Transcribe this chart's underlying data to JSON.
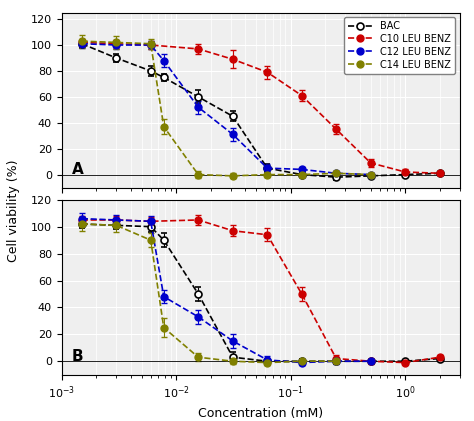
{
  "panel_A": {
    "BAC": {
      "x": [
        0.0015,
        0.003,
        0.006,
        0.0078,
        0.0156,
        0.03125,
        0.0625,
        0.125,
        0.25,
        0.5,
        1.0,
        2.0
      ],
      "y": [
        101,
        90,
        80,
        75,
        60,
        45,
        5,
        0,
        -2,
        -1,
        0,
        1
      ],
      "yerr": [
        3,
        3,
        4,
        3,
        5,
        4,
        3,
        2,
        2,
        1,
        1,
        1
      ]
    },
    "C10": {
      "x": [
        0.0015,
        0.003,
        0.006,
        0.0156,
        0.03125,
        0.0625,
        0.125,
        0.25,
        0.5,
        1.0,
        2.0
      ],
      "y": [
        102,
        101,
        100,
        97,
        89,
        79,
        61,
        35,
        9,
        2,
        1
      ],
      "yerr": [
        3,
        3,
        3,
        4,
        7,
        5,
        4,
        4,
        3,
        2,
        1
      ]
    },
    "C12": {
      "x": [
        0.0015,
        0.003,
        0.006,
        0.0078,
        0.0156,
        0.03125,
        0.0625,
        0.125,
        0.25,
        0.5
      ],
      "y": [
        101,
        100,
        100,
        88,
        52,
        31,
        5,
        4,
        1,
        0
      ],
      "yerr": [
        3,
        3,
        3,
        5,
        5,
        5,
        3,
        2,
        2,
        1
      ]
    },
    "C14": {
      "x": [
        0.0015,
        0.003,
        0.006,
        0.0078,
        0.0156,
        0.03125,
        0.0625,
        0.125,
        0.25,
        0.5
      ],
      "y": [
        103,
        102,
        101,
        37,
        0,
        -1,
        0,
        0,
        1,
        0
      ],
      "yerr": [
        5,
        5,
        4,
        6,
        3,
        2,
        2,
        1,
        1,
        1
      ]
    }
  },
  "panel_B": {
    "BAC": {
      "x": [
        0.0015,
        0.003,
        0.006,
        0.0078,
        0.0156,
        0.03125,
        0.0625,
        0.125,
        0.25,
        0.5,
        1.0,
        2.0
      ],
      "y": [
        102,
        101,
        100,
        90,
        50,
        3,
        0,
        0,
        0,
        0,
        0,
        2
      ],
      "yerr": [
        3,
        3,
        4,
        5,
        5,
        4,
        2,
        2,
        2,
        1,
        1,
        1
      ]
    },
    "C10": {
      "x": [
        0.0015,
        0.003,
        0.006,
        0.0156,
        0.03125,
        0.0625,
        0.125,
        0.25,
        0.5,
        1.0,
        2.0
      ],
      "y": [
        105,
        105,
        104,
        105,
        97,
        94,
        50,
        2,
        0,
        -1,
        3
      ],
      "yerr": [
        3,
        3,
        3,
        4,
        4,
        5,
        5,
        3,
        2,
        1,
        2
      ]
    },
    "C12": {
      "x": [
        0.0015,
        0.003,
        0.006,
        0.0078,
        0.0156,
        0.03125,
        0.0625,
        0.125,
        0.25,
        0.5
      ],
      "y": [
        106,
        105,
        104,
        48,
        33,
        15,
        1,
        -1,
        0,
        0
      ],
      "yerr": [
        4,
        4,
        4,
        5,
        5,
        5,
        3,
        2,
        2,
        1
      ]
    },
    "C14": {
      "x": [
        0.0015,
        0.003,
        0.006,
        0.0078,
        0.0156,
        0.03125,
        0.0625,
        0.125,
        0.25
      ],
      "y": [
        102,
        101,
        90,
        25,
        3,
        0,
        -1,
        0,
        0
      ],
      "yerr": [
        5,
        5,
        5,
        7,
        3,
        2,
        2,
        1,
        1
      ]
    }
  },
  "colors": {
    "BAC": "#000000",
    "C10": "#cc0000",
    "C12": "#0000cc",
    "C14": "#808000"
  },
  "series_keys": [
    "BAC",
    "C10",
    "C12",
    "C14"
  ],
  "legend_labels": [
    "BAC",
    "C10 LEU BENZ",
    "C12 LEU BENZ",
    "C14 LEU BENZ"
  ],
  "xlabel": "Concentration (mM)",
  "ylabel": "Cell viability (%)",
  "ylim_A": [
    -10,
    125
  ],
  "ylim_B": [
    -10,
    120
  ],
  "xlim": [
    0.001,
    3.0
  ],
  "yticks": [
    0,
    20,
    40,
    60,
    80,
    100,
    120
  ],
  "background_color": "#efefef"
}
